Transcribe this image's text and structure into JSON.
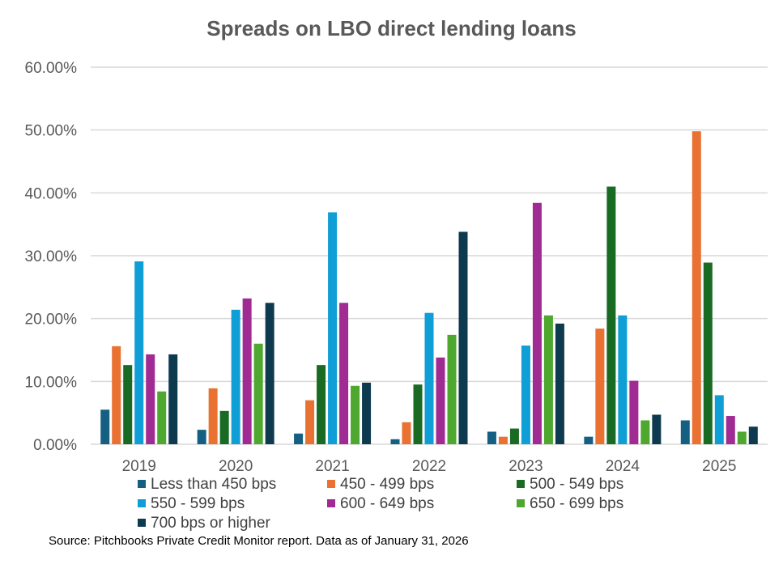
{
  "chart_data": {
    "type": "bar",
    "title": "Spreads on LBO direct lending loans",
    "xlabel": "",
    "ylabel": "",
    "ylim": [
      0,
      60
    ],
    "yticks": [
      "0.00%",
      "10.00%",
      "20.00%",
      "30.00%",
      "40.00%",
      "50.00%",
      "60.00%"
    ],
    "grid": true,
    "legend_position": "bottom",
    "categories": [
      "2019",
      "2020",
      "2021",
      "2022",
      "2023",
      "2024",
      "2025"
    ],
    "series": [
      {
        "name": "Less than 450 bps",
        "color": "#156082",
        "values": [
          5.5,
          2.3,
          1.7,
          0.8,
          2.0,
          1.2,
          3.8
        ]
      },
      {
        "name": "450 - 499 bps",
        "color": "#E97132",
        "values": [
          15.6,
          8.9,
          7.0,
          3.5,
          1.2,
          18.4,
          49.8
        ]
      },
      {
        "name": "500 - 549 bps",
        "color": "#196B24",
        "values": [
          12.6,
          5.3,
          12.6,
          9.5,
          2.5,
          41.0,
          28.9
        ]
      },
      {
        "name": "550 - 599 bps",
        "color": "#0F9ED5",
        "values": [
          29.1,
          21.4,
          36.9,
          20.9,
          15.7,
          20.5,
          7.8
        ]
      },
      {
        "name": "600 - 649 bps",
        "color": "#A02B93",
        "values": [
          14.3,
          23.2,
          22.5,
          13.8,
          38.4,
          10.1,
          4.5
        ]
      },
      {
        "name": "650 - 699 bps",
        "color": "#4EA72E",
        "values": [
          8.4,
          16.0,
          9.3,
          17.4,
          20.5,
          3.8,
          2.0
        ]
      },
      {
        "name": "700 bps or higher",
        "color": "#0E3A50",
        "values": [
          14.3,
          22.5,
          9.8,
          33.8,
          19.2,
          4.7,
          2.8
        ]
      }
    ]
  },
  "source": "Source: Pitchbooks Private Credit Monitor report. Data as of January 31, 2026"
}
